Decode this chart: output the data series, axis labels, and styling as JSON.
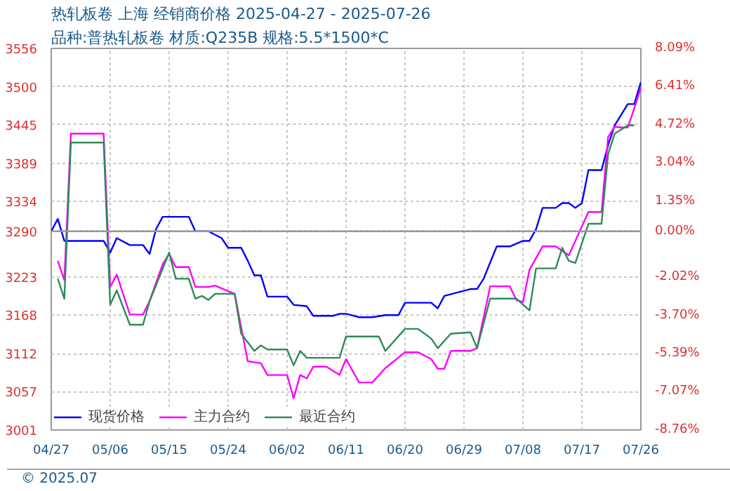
{
  "chart_data": {
    "type": "line",
    "title": "热轧板卷 上海 经销商价格 2025-04-27 - 2025-07-26",
    "subtitle": "品种:普热轧板卷 材质:Q235B 规格:5.5*1500*C",
    "annotations": [
      "© 2025.07"
    ],
    "series": [
      {
        "name": "现货价格",
        "color": "#0000ff",
        "x": [
          "2025-04-27",
          "2025-04-28",
          "2025-04-29",
          "2025-05-05",
          "2025-05-06",
          "2025-05-07",
          "2025-05-09",
          "2025-05-11",
          "2025-05-12",
          "2025-05-13",
          "2025-05-14",
          "2025-05-18",
          "2025-05-19",
          "2025-05-21",
          "2025-05-23",
          "2025-05-24",
          "2025-05-26",
          "2025-05-27",
          "2025-05-28",
          "2025-05-29",
          "2025-05-30",
          "2025-06-02",
          "2025-06-03",
          "2025-06-05",
          "2025-06-06",
          "2025-06-09",
          "2025-06-10",
          "2025-06-11",
          "2025-06-13",
          "2025-06-15",
          "2025-06-17",
          "2025-06-19",
          "2025-06-20",
          "2025-06-24",
          "2025-06-25",
          "2025-06-26",
          "2025-06-30",
          "2025-07-01",
          "2025-07-02",
          "2025-07-04",
          "2025-07-06",
          "2025-07-08",
          "2025-07-09",
          "2025-07-10",
          "2025-07-11",
          "2025-07-13",
          "2025-07-14",
          "2025-07-15",
          "2025-07-16",
          "2025-07-17",
          "2025-07-18",
          "2025-07-20",
          "2025-07-21",
          "2025-07-22",
          "2025-07-24",
          "2025-07-25",
          "2025-07-26"
        ],
        "values": [
          3290,
          3308,
          3276,
          3276,
          3259,
          3280,
          3270,
          3270,
          3257,
          3293,
          3311,
          3311,
          3290,
          3290,
          3280,
          3266,
          3266,
          3247,
          3226,
          3226,
          3195,
          3195,
          3183,
          3181,
          3167,
          3167,
          3170,
          3170,
          3165,
          3165,
          3168,
          3168,
          3186,
          3186,
          3178,
          3196,
          3206,
          3206,
          3221,
          3268,
          3268,
          3276,
          3276,
          3293,
          3324,
          3324,
          3331,
          3331,
          3324,
          3331,
          3379,
          3379,
          3415,
          3444,
          3475,
          3475,
          3507
        ]
      },
      {
        "name": "主力合约",
        "color": "#ff00ff",
        "x": [
          "2025-04-28",
          "2025-04-29",
          "2025-04-30",
          "2025-05-05",
          "2025-05-06",
          "2025-05-07",
          "2025-05-09",
          "2025-05-11",
          "2025-05-12",
          "2025-05-14",
          "2025-05-15",
          "2025-05-16",
          "2025-05-18",
          "2025-05-19",
          "2025-05-21",
          "2025-05-22",
          "2025-05-23",
          "2025-05-25",
          "2025-05-26",
          "2025-05-27",
          "2025-05-29",
          "2025-05-30",
          "2025-06-02",
          "2025-06-03",
          "2025-06-04",
          "2025-06-05",
          "2025-06-06",
          "2025-06-08",
          "2025-06-10",
          "2025-06-11",
          "2025-06-13",
          "2025-06-15",
          "2025-06-17",
          "2025-06-20",
          "2025-06-22",
          "2025-06-24",
          "2025-06-25",
          "2025-06-26",
          "2025-06-27",
          "2025-06-30",
          "2025-07-01",
          "2025-07-03",
          "2025-07-06",
          "2025-07-07",
          "2025-07-08",
          "2025-07-09",
          "2025-07-11",
          "2025-07-13",
          "2025-07-15",
          "2025-07-18",
          "2025-07-20",
          "2025-07-21",
          "2025-07-22",
          "2025-07-23",
          "2025-07-24",
          "2025-07-25",
          "2025-07-26"
        ],
        "values": [
          3247,
          3219,
          3432,
          3432,
          3209,
          3227,
          3169,
          3169,
          3188,
          3242,
          3257,
          3238,
          3238,
          3209,
          3209,
          3211,
          3207,
          3199,
          3150,
          3101,
          3098,
          3081,
          3081,
          3047,
          3081,
          3076,
          3093,
          3093,
          3081,
          3104,
          3070,
          3070,
          3091,
          3114,
          3114,
          3104,
          3090,
          3090,
          3116,
          3116,
          3120,
          3210,
          3210,
          3190,
          3187,
          3234,
          3268,
          3268,
          3255,
          3318,
          3318,
          3427,
          3442,
          3441,
          3441,
          3469,
          3499
        ]
      },
      {
        "name": "最近合约",
        "color": "#2e8b57",
        "x": [
          "2025-04-28",
          "2025-04-29",
          "2025-04-30",
          "2025-05-05",
          "2025-05-06",
          "2025-05-07",
          "2025-05-09",
          "2025-05-11",
          "2025-05-12",
          "2025-05-15",
          "2025-05-16",
          "2025-05-18",
          "2025-05-19",
          "2025-05-20",
          "2025-05-21",
          "2025-05-22",
          "2025-05-25",
          "2025-05-26",
          "2025-05-28",
          "2025-05-29",
          "2025-05-30",
          "2025-06-02",
          "2025-06-03",
          "2025-06-04",
          "2025-06-05",
          "2025-06-10",
          "2025-06-11",
          "2025-06-16",
          "2025-06-17",
          "2025-06-20",
          "2025-06-22",
          "2025-06-24",
          "2025-06-25",
          "2025-06-27",
          "2025-06-30",
          "2025-07-01",
          "2025-07-03",
          "2025-07-07",
          "2025-07-09",
          "2025-07-10",
          "2025-07-13",
          "2025-07-14",
          "2025-07-15",
          "2025-07-16",
          "2025-07-18",
          "2025-07-20",
          "2025-07-21",
          "2025-07-22",
          "2025-07-24",
          "2025-07-25"
        ],
        "values": [
          3221,
          3192,
          3419,
          3419,
          3183,
          3204,
          3154,
          3154,
          3188,
          3259,
          3221,
          3221,
          3192,
          3196,
          3190,
          3199,
          3199,
          3141,
          3116,
          3124,
          3118,
          3118,
          3095,
          3116,
          3106,
          3106,
          3137,
          3137,
          3116,
          3148,
          3148,
          3134,
          3120,
          3141,
          3143,
          3120,
          3192,
          3192,
          3175,
          3236,
          3236,
          3266,
          3247,
          3244,
          3301,
          3301,
          3402,
          3432,
          3444,
          3444
        ]
      }
    ],
    "xlim": [
      "2025-04-27",
      "2025-07-26"
    ],
    "xticks": [
      {
        "value": "2025-04-27",
        "label": "04/27"
      },
      {
        "value": "2025-05-06",
        "label": "05/06"
      },
      {
        "value": "2025-05-15",
        "label": "05/15"
      },
      {
        "value": "2025-05-24",
        "label": "05/24"
      },
      {
        "value": "2025-06-02",
        "label": "06/02"
      },
      {
        "value": "2025-06-11",
        "label": "06/11"
      },
      {
        "value": "2025-06-20",
        "label": "06/20"
      },
      {
        "value": "2025-06-29",
        "label": "06/29"
      },
      {
        "value": "2025-07-08",
        "label": "07/08"
      },
      {
        "value": "2025-07-17",
        "label": "07/17"
      },
      {
        "value": "2025-07-26",
        "label": "07/26"
      }
    ],
    "ylim": [
      3001,
      3556
    ],
    "yticks": [
      3001,
      3057,
      3112,
      3168,
      3223,
      3290,
      3334,
      3389,
      3445,
      3500,
      3556
    ],
    "y2lim": [
      -8.76,
      8.09
    ],
    "y2ticks": [
      {
        "value": -8.76,
        "label": "-8.76%"
      },
      {
        "value": -7.07,
        "label": "-7.07%"
      },
      {
        "value": -5.39,
        "label": "-5.39%"
      },
      {
        "value": -3.7,
        "label": "-3.70%"
      },
      {
        "value": -2.02,
        "label": "-2.02%"
      },
      {
        "value": 0,
        "label": "0.00%"
      },
      {
        "value": 1.35,
        "label": "1.35%"
      },
      {
        "value": 3.04,
        "label": "3.04%"
      },
      {
        "value": 4.72,
        "label": "4.72%"
      },
      {
        "value": 6.41,
        "label": "6.41%"
      },
      {
        "value": 8.09,
        "label": "8.09%"
      }
    ],
    "ref_lines": [
      {
        "axis": "y",
        "value": 3290,
        "color": "#999999",
        "line_style": "solid"
      }
    ],
    "grid": true,
    "legend": "bottom left"
  }
}
